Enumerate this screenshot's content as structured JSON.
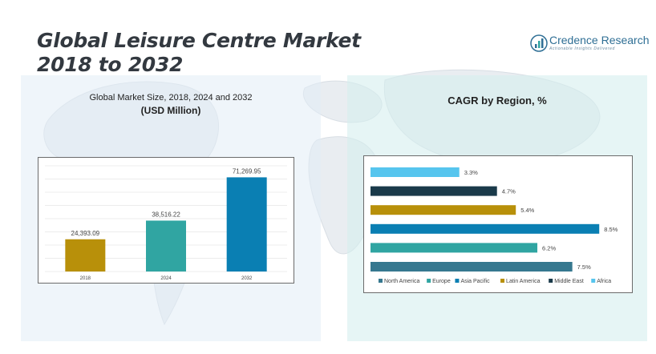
{
  "header": {
    "title_line1": "Global Leisure Centre Market",
    "title_line2": "2018 to 2032"
  },
  "logo": {
    "name": "Credence Research",
    "tagline": "Actionable Insights Delivered",
    "icon": "credence-logo-icon"
  },
  "left_panel": {
    "title": "Global Market Size, 2018, 2024 and 2032",
    "subtitle": "(USD Million)"
  },
  "right_panel": {
    "title": "CAGR by Region, %"
  },
  "colors": {
    "title_text": "#333940",
    "brand_blue": "#2f6f95",
    "bar_2018": "#b8900a",
    "bar_2024": "#30a5a2",
    "bar_2032": "#0a7fb3",
    "north_america": "#36788f",
    "europe": "#30a5a2",
    "asia_pacific": "#0a7fb3",
    "latin_america": "#b8900a",
    "middle_east": "#1a3a4a",
    "africa": "#56c5ee"
  },
  "chart_data": [
    {
      "type": "bar",
      "categories": [
        "2018",
        "2024",
        "2032"
      ],
      "values": [
        24393.09,
        38516.22,
        71269.95
      ],
      "value_labels": [
        "24,393.09",
        "38,516.22",
        "71,269.95"
      ],
      "colors": [
        "#b8900a",
        "#30a5a2",
        "#0a7fb3"
      ],
      "title": "Global Market Size, 2018, 2024 and 2032",
      "subtitle": "(USD Million)",
      "ylim": [
        0,
        80000
      ],
      "grid": true
    },
    {
      "type": "bar",
      "orientation": "horizontal",
      "title": "CAGR by Region, %",
      "categories": [
        "Africa",
        "Middle East",
        "Latin America",
        "Asia Pacific",
        "Europe",
        "North America"
      ],
      "values": [
        3.3,
        4.7,
        5.4,
        8.5,
        6.2,
        7.5
      ],
      "value_labels": [
        "3.3%",
        "4.7%",
        "5.4%",
        "8.5%",
        "6.2%",
        "7.5%"
      ],
      "colors": [
        "#56c5ee",
        "#1a3a4a",
        "#b8900a",
        "#0a7fb3",
        "#30a5a2",
        "#36788f"
      ],
      "xlim": [
        0,
        9
      ],
      "legend": [
        "North America",
        "Europe",
        "Asia Pacific",
        "Latin America",
        "Middle East",
        "Africa"
      ],
      "legend_colors": [
        "#36788f",
        "#30a5a2",
        "#0a7fb3",
        "#b8900a",
        "#1a3a4a",
        "#56c5ee"
      ],
      "legend_position": "bottom",
      "grid": false
    }
  ]
}
